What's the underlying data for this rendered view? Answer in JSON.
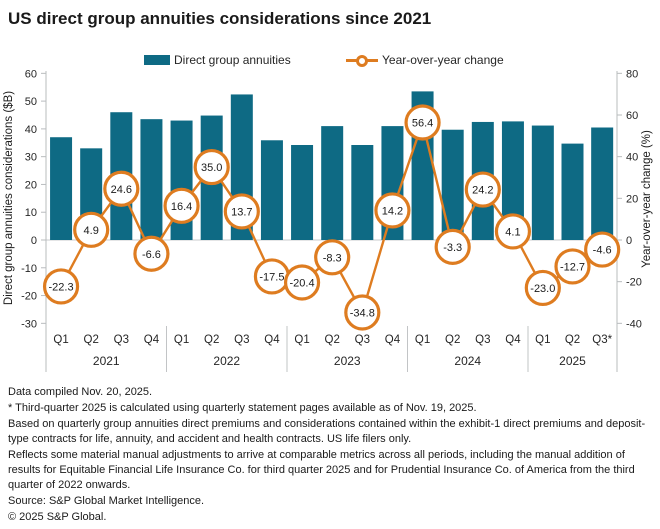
{
  "title": "US direct group annuities considerations since 2021",
  "legend": {
    "bar_label": "Direct group annuities",
    "line_label": "Year-over-year change"
  },
  "colors": {
    "bar": "#0e6a84",
    "line": "#de7c20",
    "axis_line": "#b9bcbe",
    "grid_zero": "#c9cbcd",
    "separator": "#c2c4c6",
    "tick_text": "#262626",
    "label_text": "#1a1a1a"
  },
  "chart_data": {
    "type": "bar",
    "subtype": "combo bar + line, dual axis",
    "title": "US direct group annuities considerations since 2021",
    "years": [
      {
        "year": "2021",
        "quarters": [
          "Q1",
          "Q2",
          "Q3",
          "Q4"
        ]
      },
      {
        "year": "2022",
        "quarters": [
          "Q1",
          "Q2",
          "Q3",
          "Q4"
        ]
      },
      {
        "year": "2023",
        "quarters": [
          "Q1",
          "Q2",
          "Q3",
          "Q4"
        ]
      },
      {
        "year": "2024",
        "quarters": [
          "Q1",
          "Q2",
          "Q3",
          "Q4"
        ]
      },
      {
        "year": "2025",
        "quarters": [
          "Q1",
          "Q2",
          "Q3*"
        ]
      }
    ],
    "series": [
      {
        "name": "Direct group annuities",
        "type": "bar",
        "axis": "left",
        "values": [
          37.0,
          33.0,
          46.0,
          43.5,
          43.0,
          44.8,
          52.4,
          35.9,
          34.2,
          41.0,
          34.2,
          41.0,
          53.5,
          39.7,
          42.5,
          42.7,
          41.2,
          34.7,
          40.5
        ]
      },
      {
        "name": "Year-over-year change",
        "type": "line",
        "axis": "right",
        "values": [
          -22.3,
          4.9,
          24.6,
          -6.6,
          16.4,
          35.0,
          13.7,
          -17.5,
          -20.4,
          -8.3,
          -34.8,
          14.2,
          56.4,
          -3.3,
          24.2,
          4.1,
          -23.0,
          -12.7,
          -4.6
        ],
        "data_labels_shown": true
      }
    ],
    "left_axis": {
      "label": "Direct group annuities considerations ($B)",
      "min": -30,
      "max": 60,
      "step": 10,
      "ticks": [
        60,
        50,
        40,
        30,
        20,
        10,
        0,
        -10,
        -20,
        -30
      ]
    },
    "right_axis": {
      "label": "Year-over-year change (%)",
      "min": -40,
      "max": 80,
      "step": 20,
      "ticks": [
        80,
        60,
        40,
        20,
        0,
        -20,
        -40
      ]
    },
    "grid": "zero line only",
    "legend_position": "top center"
  },
  "footnotes": [
    "Data compiled Nov. 20, 2025.",
    "* Third-quarter 2025 is calculated using quarterly statement pages available as of Nov. 19, 2025.",
    "Based on quarterly group annuities direct premiums and considerations contained within the exhibit-1 direct premiums and deposit-type contracts for life, annuity, and accident and health contracts. US life filers only.",
    "Reflects some material manual adjustments to arrive at comparable metrics across all periods, including the manual addition of results for Equitable Financial Life Insurance Co. for third quarter 2025 and for Prudential Insurance Co. of America from the third quarter of 2022 onwards.",
    "Source: S&P Global Market Intelligence.",
    "© 2025 S&P Global."
  ]
}
